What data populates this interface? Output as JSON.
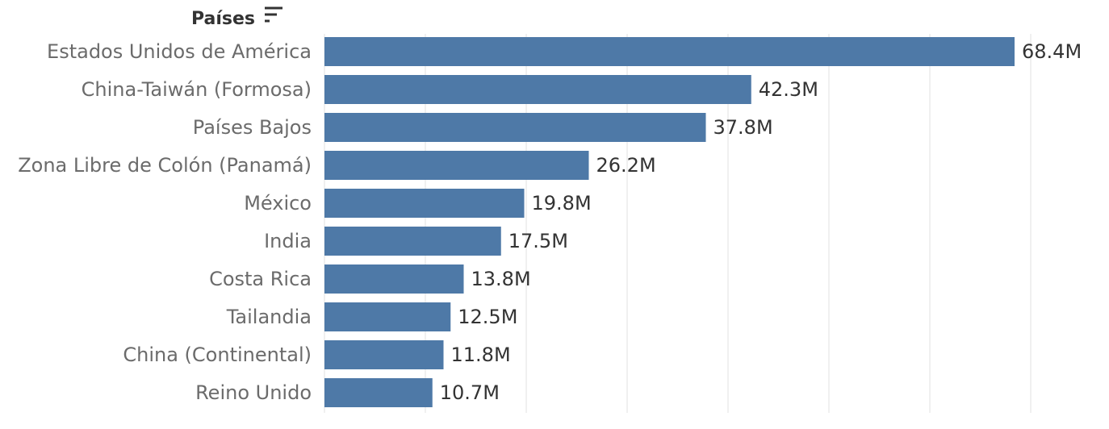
{
  "chart_data": {
    "type": "bar",
    "orientation": "horizontal",
    "header": "Países",
    "sorted": "descending",
    "categories": [
      "Estados Unidos de América",
      "China-Taiwán (Formosa)",
      "Países Bajos",
      "Zona Libre de Colón (Panamá)",
      "México",
      "India",
      "Costa Rica",
      "Tailandia",
      "China (Continental)",
      "Reino Unido"
    ],
    "values": [
      68.4,
      42.3,
      37.8,
      26.2,
      19.8,
      17.5,
      13.8,
      12.5,
      11.8,
      10.7
    ],
    "value_labels": [
      "68.4M",
      "42.3M",
      "37.8M",
      "26.2M",
      "19.8M",
      "17.5M",
      "13.8M",
      "12.5M",
      "11.8M",
      "10.7M"
    ],
    "unit": "M",
    "xlim": [
      0,
      70
    ],
    "grid_step": 10,
    "grid": true,
    "bar_color": "#4e79a7"
  }
}
